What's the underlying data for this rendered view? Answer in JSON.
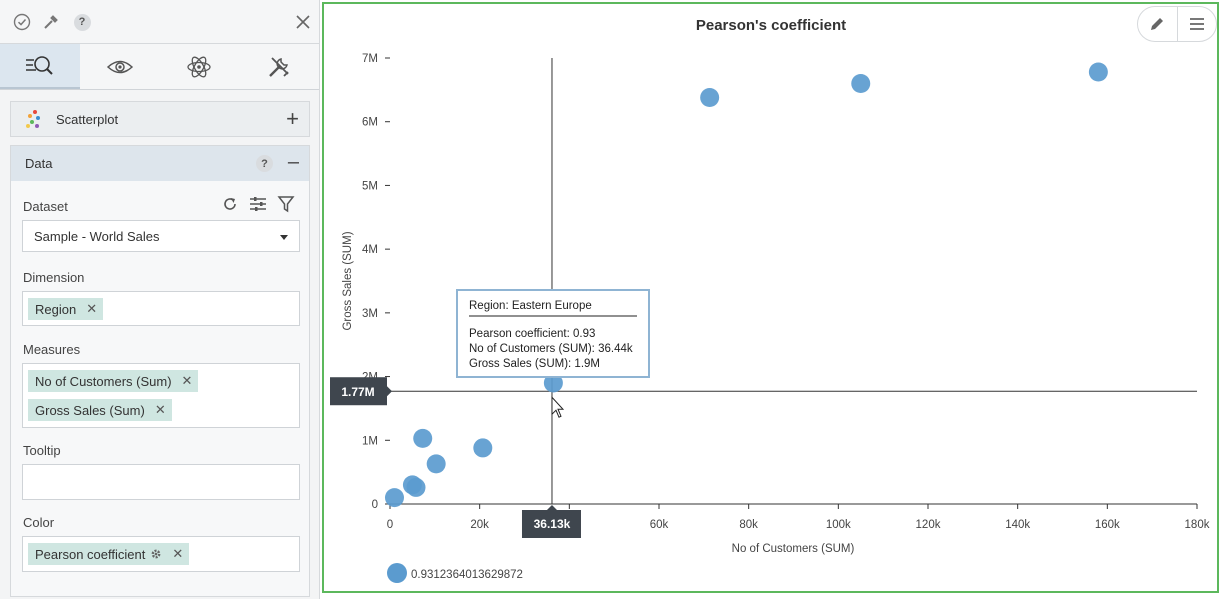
{
  "panel": {
    "chart_type_label": "Scatterplot",
    "data_section_title": "Data",
    "dataset_label": "Dataset",
    "dataset_value": "Sample - World Sales",
    "dimension_label": "Dimension",
    "dimension_chips": [
      "Region"
    ],
    "measures_label": "Measures",
    "measure_chips": [
      "No of Customers (Sum)",
      "Gross Sales (Sum)"
    ],
    "tooltip_label": "Tooltip",
    "color_label": "Color",
    "color_chip": "Pearson coefficient",
    "help_glyph": "?"
  },
  "chart_data": {
    "type": "scatter",
    "title": "Pearson's coefficient",
    "xlabel": "No of Customers (SUM)",
    "ylabel": "Gross Sales (SUM)",
    "xlim": [
      0,
      180000
    ],
    "ylim": [
      0,
      7000000
    ],
    "x_ticks": [
      "0",
      "20k",
      "40k",
      "60k",
      "80k",
      "100k",
      "120k",
      "140k",
      "160k",
      "180k"
    ],
    "y_ticks": [
      "0",
      "1M",
      "2M",
      "3M",
      "4M",
      "5M",
      "6M",
      "7M"
    ],
    "series": [
      {
        "name": "0.9312364013629872",
        "color": "#5b9bcf",
        "points": [
          {
            "x": 1000,
            "y": 100000
          },
          {
            "x": 5000,
            "y": 300000
          },
          {
            "x": 5800,
            "y": 260000
          },
          {
            "x": 7300,
            "y": 1030000
          },
          {
            "x": 10300,
            "y": 630000
          },
          {
            "x": 20700,
            "y": 880000
          },
          {
            "x": 36440,
            "y": 1900000
          },
          {
            "x": 71300,
            "y": 6380000
          },
          {
            "x": 105000,
            "y": 6600000
          },
          {
            "x": 158000,
            "y": 6780000
          }
        ]
      }
    ],
    "crosshair": {
      "x_label": "36.13k",
      "y_label": "1.77M",
      "x_value": 36130,
      "y_value": 1770000
    },
    "tooltip": {
      "title": "Region: Eastern Europe",
      "lines": [
        "Pearson coefficient: 0.93",
        "No of Customers (SUM): 36.44k",
        "Gross Sales (SUM): 1.9M"
      ]
    },
    "grid": false,
    "legend_position": "bottom-left"
  }
}
